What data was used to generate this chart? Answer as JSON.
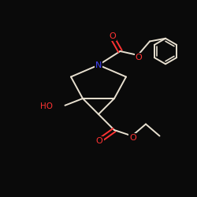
{
  "bg_color": "#0a0a0a",
  "bond_color": "#e8e0d0",
  "atom_colors": {
    "N": "#4444ff",
    "O": "#ff3333",
    "C": "#e8e0d0"
  },
  "lw": 1.4,
  "fontsize": 7.5
}
